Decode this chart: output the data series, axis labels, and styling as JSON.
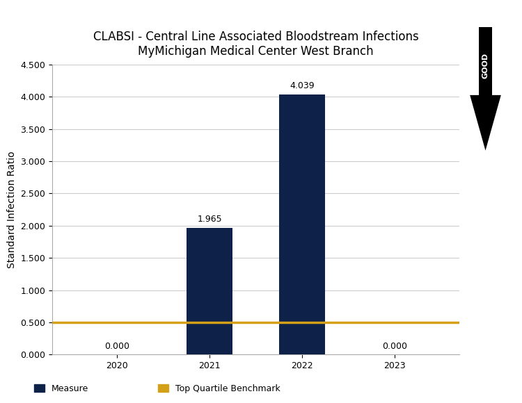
{
  "title_line1": "CLABSI - Central Line Associated Bloodstream Infections",
  "title_line2": "MyMichigan Medical Center West Branch",
  "categories": [
    "2020",
    "2021",
    "2022",
    "2023"
  ],
  "values": [
    0.0,
    1.965,
    4.039,
    0.0
  ],
  "bar_color": "#0d2149",
  "benchmark_value": 0.5,
  "benchmark_color": "#d4a017",
  "ylabel": "Standard Infection Ratio",
  "ylim": [
    0,
    4.5
  ],
  "yticks": [
    0.0,
    0.5,
    1.0,
    1.5,
    2.0,
    2.5,
    3.0,
    3.5,
    4.0,
    4.5
  ],
  "bar_width": 0.5,
  "background_color": "#ffffff",
  "grid_color": "#cccccc",
  "legend_measure_label": "Measure",
  "legend_benchmark_label": "Top Quartile Benchmark",
  "good_arrow_label": "GOOD",
  "title_fontsize": 12,
  "axis_label_fontsize": 10,
  "tick_fontsize": 9,
  "annotation_fontsize": 9
}
